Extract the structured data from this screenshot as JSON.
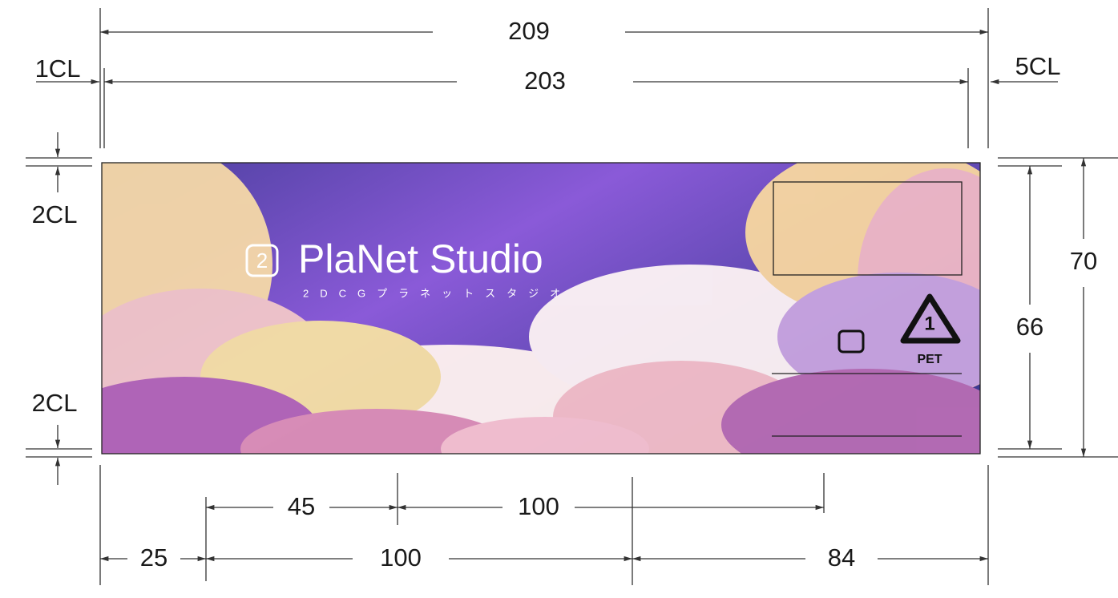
{
  "dimensions": {
    "overall_width": 209,
    "label_width": 203,
    "left_clearance": "1CL",
    "right_clearance": "5CL",
    "top_clearance": "2CL",
    "bottom_clearance": "2CL",
    "overall_height": 70,
    "label_height": 66,
    "segment_45": 45,
    "segment_100_upper": 100,
    "segment_25": 25,
    "segment_100_lower": 100,
    "segment_84": 84
  },
  "label": {
    "logo_mark": "2",
    "logo": "PlaNet Studio",
    "logo_subtitle": "2DCGプラネットスタジオ",
    "recycle_number": "1",
    "recycle_material": "PET"
  }
}
